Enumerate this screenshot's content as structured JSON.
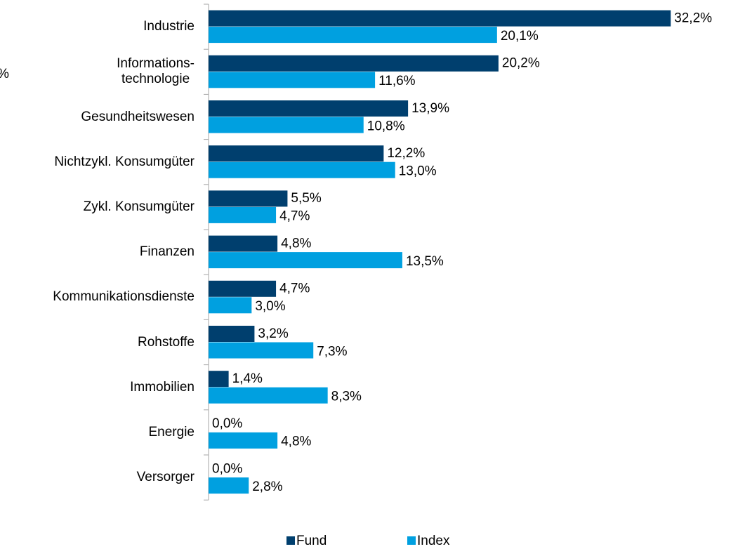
{
  "chart_data": {
    "type": "hbar",
    "annotation": "%",
    "categories": [
      "Industrie",
      "Informations-\ntechnologie",
      "Gesundheitswesen",
      "Nichtzykl. Konsumgüter",
      "Zykl. Konsumgüter",
      "Finanzen",
      "Kommunikationsdienste",
      "Rohstoffe",
      "Immobilien",
      "Energie",
      "Versorger"
    ],
    "series": [
      {
        "name": "Fund",
        "color": "#003f6e",
        "values": [
          32.2,
          20.2,
          13.9,
          12.2,
          5.5,
          4.8,
          4.7,
          3.2,
          1.4,
          0.0,
          0.0
        ],
        "value_labels": [
          "32,2%",
          "20,2%",
          "13,9%",
          "12,2%",
          "5,5%",
          "4,8%",
          "4,7%",
          "3,2%",
          "1,4%",
          "0,0%",
          "0,0%"
        ]
      },
      {
        "name": "Index",
        "color": "#00a0e0",
        "values": [
          20.1,
          11.6,
          10.8,
          13.0,
          4.7,
          13.5,
          3.0,
          7.3,
          8.3,
          4.8,
          2.8
        ],
        "value_labels": [
          "20,1%",
          "11,6%",
          "10,8%",
          "13,0%",
          "4,7%",
          "13,5%",
          "3,0%",
          "7,3%",
          "8,3%",
          "4,8%",
          "2,8%"
        ]
      }
    ],
    "xlim": [
      0,
      35
    ],
    "legend": "bottom"
  }
}
